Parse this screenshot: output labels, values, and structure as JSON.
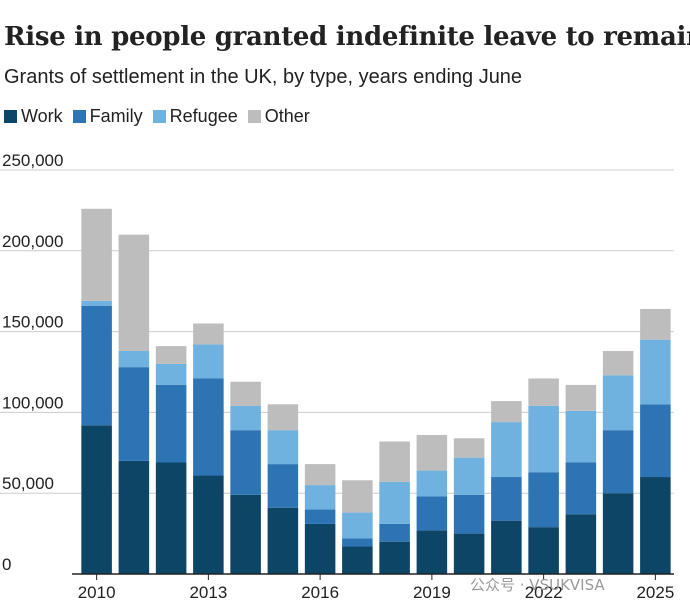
{
  "title": "Rise in people granted indefinite leave to remain",
  "subtitle": "Grants of settlement in the UK, by type, years ending June",
  "watermark": "公众号 · VSUKVISA",
  "colors": {
    "Work": "#0d4567",
    "Family": "#2d74b5",
    "Refugee": "#6fb1df",
    "Other": "#bdbdbd",
    "grid": "#cccccc",
    "axis": "#222222"
  },
  "chart_data": {
    "type": "bar",
    "stacked": true,
    "title": "Rise in people granted indefinite leave to remain",
    "subtitle": "Grants of settlement in the UK, by type, years ending June",
    "xlabel": "",
    "ylabel": "",
    "ylim": [
      0,
      250000
    ],
    "yticks": [
      0,
      50000,
      100000,
      150000,
      200000,
      250000
    ],
    "ytick_labels": [
      "0",
      "50,000",
      "100,000",
      "150,000",
      "200,000",
      "250,000"
    ],
    "categories": [
      "2010",
      "2011",
      "2012",
      "2013",
      "2014",
      "2015",
      "2016",
      "2017",
      "2018",
      "2019",
      "2020",
      "2021",
      "2022",
      "2023",
      "2024",
      "2025"
    ],
    "xtick_labels": [
      {
        "index": 0,
        "label": "2010"
      },
      {
        "index": 3,
        "label": "2013"
      },
      {
        "index": 6,
        "label": "2016"
      },
      {
        "index": 9,
        "label": "2019"
      },
      {
        "index": 12,
        "label": "2022"
      },
      {
        "index": 15,
        "label": "2025"
      }
    ],
    "legend": [
      "Work",
      "Family",
      "Refugee",
      "Other"
    ],
    "legend_position": "top-left",
    "grid": true,
    "series": [
      {
        "name": "Work",
        "values": [
          92000,
          70000,
          69000,
          61000,
          49000,
          41000,
          31000,
          17000,
          20000,
          27000,
          25000,
          33000,
          29000,
          37000,
          50000,
          60000
        ]
      },
      {
        "name": "Family",
        "values": [
          74000,
          58000,
          48000,
          60000,
          40000,
          27000,
          9000,
          5000,
          11000,
          21000,
          24000,
          27000,
          34000,
          32000,
          39000,
          45000
        ]
      },
      {
        "name": "Refugee",
        "values": [
          3000,
          10000,
          13000,
          21000,
          15000,
          21000,
          15000,
          16000,
          26000,
          16000,
          23000,
          34000,
          41000,
          32000,
          34000,
          40000
        ]
      },
      {
        "name": "Other",
        "values": [
          57000,
          72000,
          11000,
          13000,
          15000,
          16000,
          13000,
          20000,
          25000,
          22000,
          12000,
          13000,
          17000,
          16000,
          15000,
          19000
        ]
      }
    ]
  }
}
